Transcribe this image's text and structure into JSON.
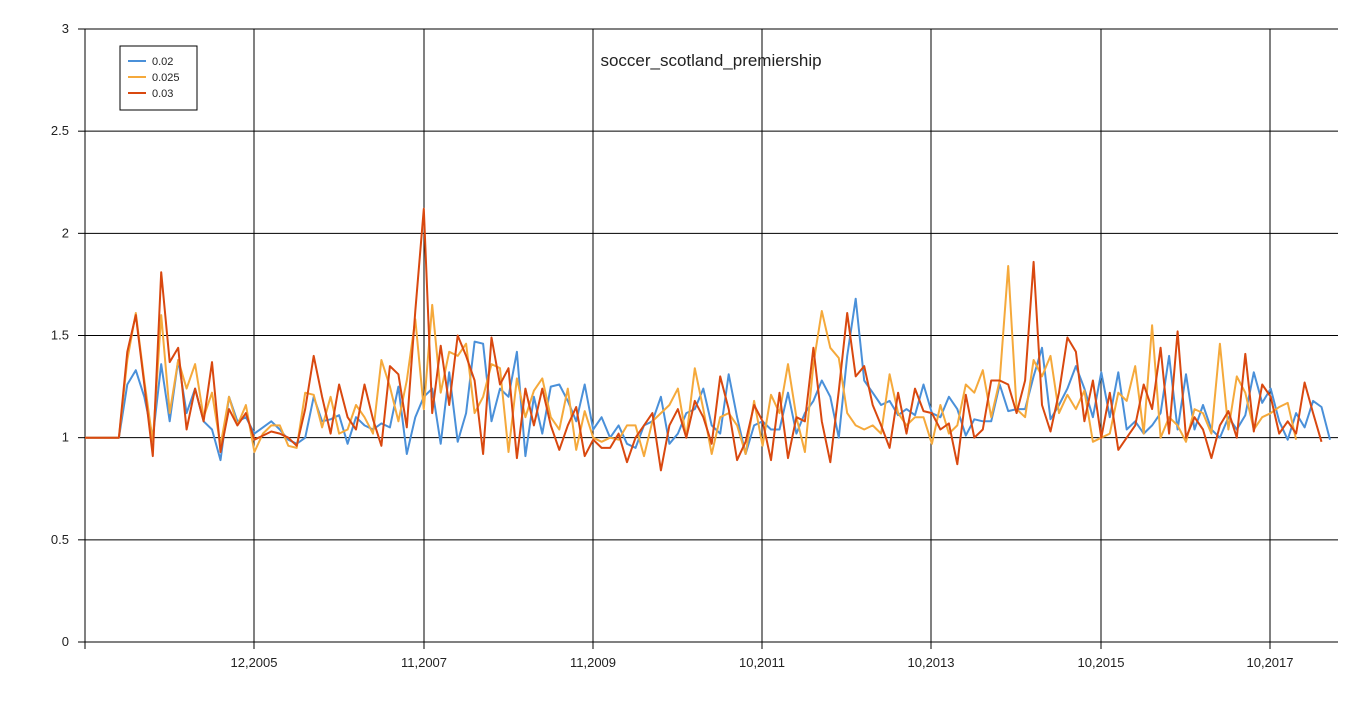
{
  "chart_data": {
    "type": "line",
    "title": "soccer_scotland_premiership",
    "xlabel": "",
    "ylabel": "",
    "ylim": [
      0,
      3
    ],
    "y_ticks": [
      "0",
      "0.5",
      "1",
      "1.5",
      "2",
      "2.5",
      "3"
    ],
    "x_tick_labels": [
      "12,2005",
      "11,2007",
      "11,2009",
      "10,2011",
      "10,2013",
      "10,2015",
      "10,2017"
    ],
    "grid": true,
    "legend_position": "top-left",
    "series": [
      {
        "name": "0.02",
        "color": "#4a90d9",
        "values": [
          1,
          1,
          1,
          1,
          1,
          1.26,
          1.33,
          1.2,
          1,
          1.36,
          1.08,
          1.38,
          1.12,
          1.24,
          1.08,
          1.04,
          0.89,
          1.2,
          1.08,
          1.1,
          1.02,
          1.05,
          1.08,
          1.04,
          0.99,
          0.97,
          1,
          1.2,
          1.08,
          1.09,
          1.11,
          0.97,
          1.1,
          1.06,
          1.04,
          1.07,
          1.05,
          1.25,
          0.92,
          1.1,
          1.2,
          1.24,
          0.97,
          1.32,
          0.98,
          1.12,
          1.47,
          1.46,
          1.08,
          1.24,
          1.2,
          1.42,
          0.91,
          1.2,
          1.02,
          1.25,
          1.26,
          1.18,
          1.08,
          1.26,
          1.04,
          1.1,
          1,
          1.06,
          0.97,
          0.95,
          1.06,
          1.08,
          1.2,
          0.97,
          1.02,
          1.12,
          1.14,
          1.24,
          1.06,
          1.02,
          1.31,
          1.1,
          0.92,
          1.06,
          1.08,
          1.04,
          1.04,
          1.22,
          1.02,
          1.12,
          1.18,
          1.28,
          1.2,
          1,
          1.4,
          1.68,
          1.28,
          1.22,
          1.16,
          1.18,
          1.11,
          1.14,
          1.11,
          1.26,
          1.12,
          1.1,
          1.2,
          1.14,
          1.01,
          1.09,
          1.08,
          1.08,
          1.26,
          1.13,
          1.14,
          1.14,
          1.3,
          1.44,
          1.09,
          1.16,
          1.24,
          1.35,
          1.24,
          1.1,
          1.32,
          1.1,
          1.32,
          1.04,
          1.08,
          1.02,
          1.06,
          1.12,
          1.4,
          1.04,
          1.31,
          1.04,
          1.16,
          1.04,
          1,
          1.1,
          1.04,
          1.11,
          1.32,
          1.17,
          1.24,
          1.08,
          0.99,
          1.12,
          1.05,
          1.18,
          1.15,
          0.99
        ]
      },
      {
        "name": "0.025",
        "color": "#f5a93b",
        "values": [
          1,
          1,
          1,
          1,
          1,
          1.38,
          1.61,
          1.28,
          0.98,
          1.6,
          1.12,
          1.38,
          1.24,
          1.36,
          1.1,
          1.22,
          0.96,
          1.2,
          1.06,
          1.16,
          0.93,
          1.02,
          1.06,
          1.06,
          0.96,
          0.95,
          1.22,
          1.21,
          1.05,
          1.2,
          1.02,
          1.04,
          1.16,
          1.1,
          1.02,
          1.38,
          1.25,
          1.08,
          1.28,
          1.58,
          1.14,
          1.65,
          1.22,
          1.42,
          1.4,
          1.46,
          1.12,
          1.2,
          1.36,
          1.34,
          0.93,
          1.29,
          1.1,
          1.23,
          1.29,
          1.1,
          1.04,
          1.24,
          0.94,
          1.13,
          1,
          0.98,
          1,
          0.99,
          1.06,
          1.06,
          0.91,
          1.08,
          1.12,
          1.16,
          1.24,
          1,
          1.34,
          1.14,
          0.92,
          1.1,
          1.12,
          1.06,
          0.92,
          1.18,
          0.96,
          1.21,
          1.12,
          1.36,
          1.1,
          0.93,
          1.36,
          1.62,
          1.44,
          1.39,
          1.12,
          1.06,
          1.04,
          1.06,
          1.02,
          1.31,
          1.12,
          1.06,
          1.1,
          1.1,
          0.97,
          1.16,
          1.02,
          1.06,
          1.26,
          1.22,
          1.33,
          1.1,
          1.28,
          1.84,
          1.14,
          1.1,
          1.38,
          1.3,
          1.4,
          1.12,
          1.21,
          1.14,
          1.23,
          0.98,
          1,
          1.02,
          1.22,
          1.18,
          1.35,
          1.02,
          1.55,
          1,
          1.1,
          1.06,
          0.98,
          1.14,
          1.12,
          1.02,
          1.46,
          1.04,
          1.3,
          1.22,
          1.04,
          1.1,
          1.12,
          1.15,
          1.17,
          0.99
        ]
      },
      {
        "name": "0.03",
        "color": "#d9480f",
        "values": [
          1,
          1,
          1,
          1,
          1,
          1.42,
          1.6,
          1.26,
          0.91,
          1.81,
          1.37,
          1.44,
          1.04,
          1.24,
          1.08,
          1.37,
          0.93,
          1.14,
          1.06,
          1.12,
          0.99,
          1.01,
          1.03,
          1.02,
          1,
          0.96,
          1.14,
          1.4,
          1.2,
          1.02,
          1.26,
          1.1,
          1.04,
          1.26,
          1.09,
          0.96,
          1.35,
          1.31,
          1.05,
          1.62,
          2.12,
          1.12,
          1.45,
          1.16,
          1.5,
          1.4,
          1.28,
          0.92,
          1.49,
          1.26,
          1.34,
          0.9,
          1.24,
          1.06,
          1.24,
          1.06,
          0.94,
          1.06,
          1.15,
          0.91,
          0.99,
          0.95,
          0.95,
          1.02,
          0.88,
          1,
          1.06,
          1.12,
          0.84,
          1.06,
          1.14,
          1,
          1.18,
          1.1,
          0.97,
          1.3,
          1.14,
          0.89,
          0.98,
          1.16,
          1.08,
          0.89,
          1.22,
          0.9,
          1.1,
          1.08,
          1.44,
          1.08,
          0.88,
          1.23,
          1.61,
          1.3,
          1.35,
          1.16,
          1.06,
          0.95,
          1.22,
          1.02,
          1.24,
          1.13,
          1.12,
          1.04,
          1.07,
          0.87,
          1.21,
          1,
          1.04,
          1.28,
          1.28,
          1.26,
          1.12,
          1.28,
          1.86,
          1.16,
          1.03,
          1.22,
          1.49,
          1.42,
          1.08,
          1.28,
          1,
          1.22,
          0.94,
          1,
          1.06,
          1.26,
          1.14,
          1.44,
          1.02,
          1.52,
          1,
          1.1,
          1.04,
          0.9,
          1.06,
          1.13,
          1,
          1.41,
          1.03,
          1.26,
          1.2,
          1.02,
          1.08,
          1.02,
          1.27,
          1.12,
          0.98
        ]
      }
    ]
  }
}
